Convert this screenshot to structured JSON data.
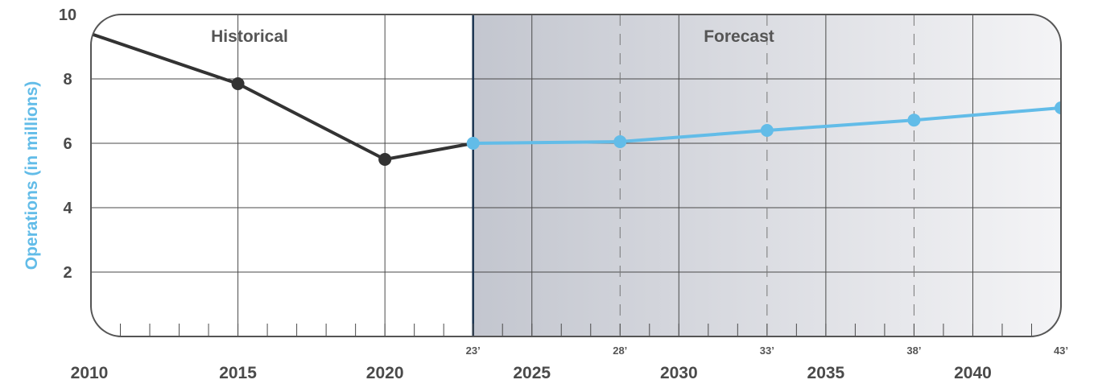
{
  "chart_data": {
    "type": "line",
    "ylabel": "Operations (in millions)",
    "ylim": [
      0,
      10
    ],
    "xlim": [
      2010,
      2043
    ],
    "y_ticks": [
      2,
      4,
      6,
      8,
      10
    ],
    "x_ticks": [
      2010,
      2015,
      2020,
      2025,
      2030,
      2035,
      2040
    ],
    "forecast_ticks": [
      {
        "year": 2023,
        "label": "23’"
      },
      {
        "year": 2028,
        "label": "28’"
      },
      {
        "year": 2033,
        "label": "33’"
      },
      {
        "year": 2038,
        "label": "38’"
      },
      {
        "year": 2043,
        "label": "43’"
      }
    ],
    "regions": {
      "historical_label": "Historical",
      "forecast_label": "Forecast",
      "forecast_start": 2023
    },
    "grid": true,
    "series": [
      {
        "role": "historical",
        "color": "#333333",
        "points": [
          [
            2010,
            9.4
          ],
          [
            2015,
            7.85
          ],
          [
            2020,
            5.5
          ],
          [
            2023,
            6.0
          ]
        ],
        "markers": [
          2015,
          2020
        ]
      },
      {
        "role": "forecast",
        "color": "#62bce8",
        "points": [
          [
            2023,
            6.0
          ],
          [
            2028,
            6.05
          ],
          [
            2033,
            6.4
          ],
          [
            2038,
            6.72
          ],
          [
            2043,
            7.1
          ]
        ],
        "markers": [
          2023,
          2028,
          2033,
          2038,
          2043
        ]
      }
    ]
  },
  "colors": {
    "frame": "#555555",
    "grid": "#4a4a4a",
    "forecast_divider": "#1b3350",
    "ylabel": "#62bce8",
    "tick_text": "#4a4a4a",
    "shade_dark": "#c3c6cf",
    "shade_light": "#f4f4f6"
  }
}
